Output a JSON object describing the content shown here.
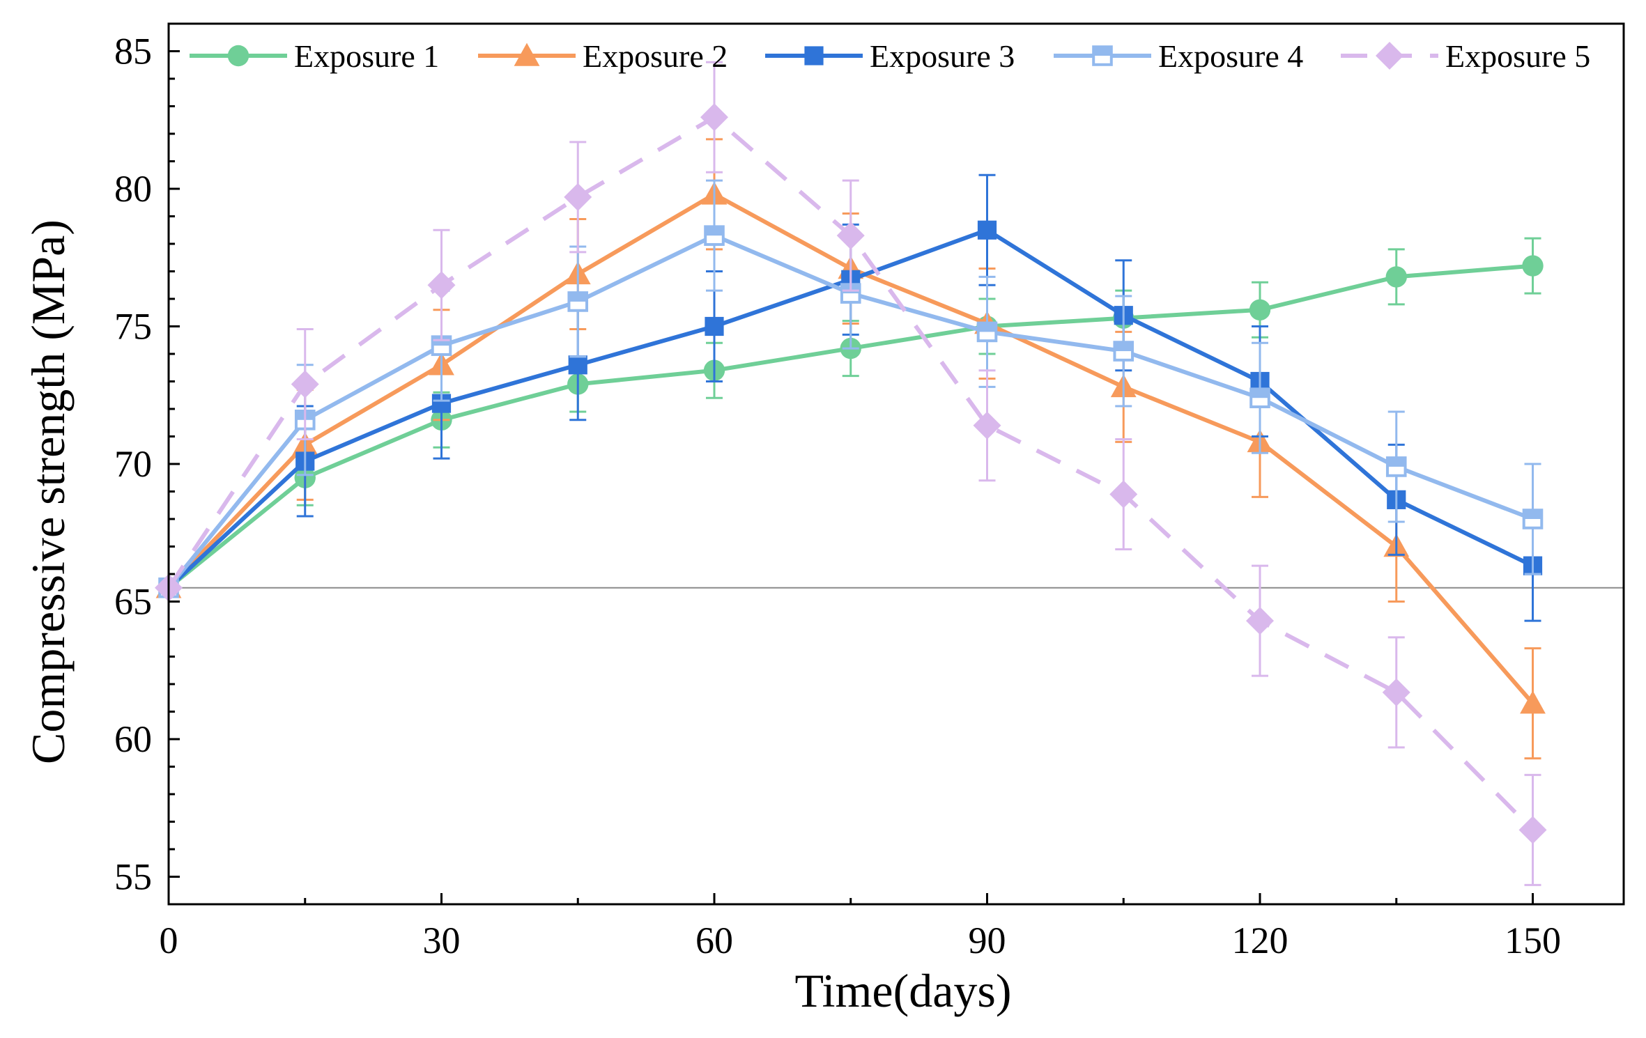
{
  "chart_data": {
    "type": "line",
    "title": "",
    "xlabel": "Time(days)",
    "ylabel": "Compressive strength (MPa)",
    "xlim": [
      0,
      160
    ],
    "ylim": [
      54,
      86
    ],
    "x_ticks": [
      0,
      30,
      60,
      90,
      120,
      150
    ],
    "y_ticks": [
      55,
      60,
      65,
      70,
      75,
      80,
      85
    ],
    "reference_line_y": 65.5,
    "legend_position": "top",
    "x": [
      0,
      15,
      30,
      45,
      60,
      75,
      90,
      105,
      120,
      135,
      150
    ],
    "series": [
      {
        "name": "Exposure 1",
        "color": "#6fcf97",
        "marker": "circle",
        "dashed": false,
        "values": [
          65.5,
          69.5,
          71.6,
          72.9,
          73.4,
          74.2,
          75.0,
          75.3,
          75.6,
          76.8,
          77.2
        ],
        "errors": [
          0,
          1.0,
          1.0,
          1.0,
          1.0,
          1.0,
          1.0,
          1.0,
          1.0,
          1.0,
          1.0
        ]
      },
      {
        "name": "Exposure 2",
        "color": "#f79a5b",
        "marker": "triangle",
        "dashed": false,
        "values": [
          65.5,
          70.7,
          73.6,
          76.9,
          79.8,
          77.1,
          75.1,
          72.8,
          70.8,
          67.0,
          61.3
        ],
        "errors": [
          0,
          2.0,
          2.0,
          2.0,
          2.0,
          2.0,
          2.0,
          2.0,
          2.0,
          2.0,
          2.0
        ]
      },
      {
        "name": "Exposure 3",
        "color": "#2f74d8",
        "marker": "square",
        "dashed": false,
        "values": [
          65.5,
          70.1,
          72.2,
          73.6,
          75.0,
          76.7,
          78.5,
          75.4,
          73.0,
          68.7,
          66.3
        ],
        "errors": [
          0,
          2.0,
          2.0,
          2.0,
          2.0,
          2.0,
          2.0,
          2.0,
          2.0,
          2.0,
          2.0
        ]
      },
      {
        "name": "Exposure 4",
        "color": "#92b9ee",
        "marker": "square-open",
        "dashed": false,
        "values": [
          65.5,
          71.6,
          74.3,
          75.9,
          78.3,
          76.2,
          74.8,
          74.1,
          72.4,
          69.9,
          68.0
        ],
        "errors": [
          0,
          2.0,
          2.0,
          2.0,
          2.0,
          2.0,
          2.0,
          2.0,
          2.0,
          2.0,
          2.0
        ]
      },
      {
        "name": "Exposure 5",
        "color": "#d9b8ec",
        "marker": "diamond",
        "dashed": true,
        "values": [
          65.5,
          72.9,
          76.5,
          79.7,
          82.6,
          78.3,
          71.4,
          68.9,
          64.3,
          61.7,
          56.7
        ],
        "errors": [
          0,
          2.0,
          2.0,
          2.0,
          2.0,
          2.0,
          2.0,
          2.0,
          2.0,
          2.0,
          2.0
        ]
      }
    ]
  }
}
